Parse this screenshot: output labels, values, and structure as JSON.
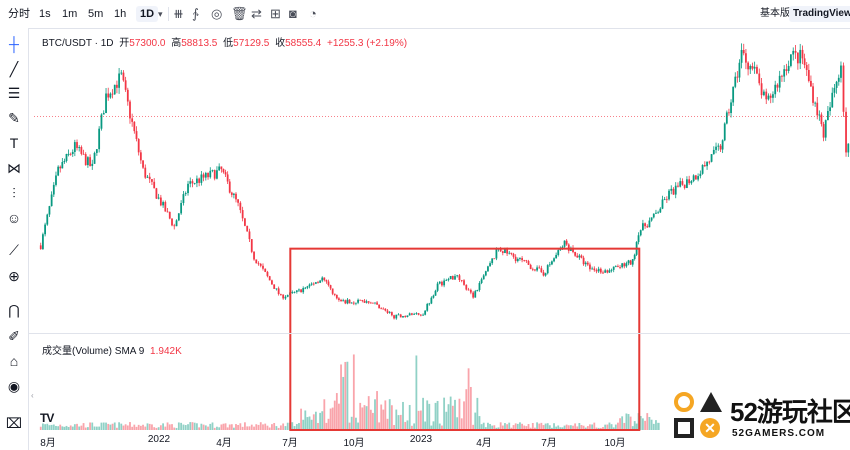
{
  "toolbar": {
    "items": [
      "分时",
      "1s",
      "1m",
      "5m",
      "1h",
      "1D"
    ],
    "active": "1D",
    "icons": [
      "candles-icon",
      "indicators-icon",
      "eye-icon",
      "trash-icon",
      "compare-icon",
      "layout-icon",
      "camera-icon",
      "replay-icon"
    ],
    "modes": [
      "基本版",
      "TradingView"
    ],
    "active_mode": "TradingView"
  },
  "left_tools": [
    "crosshair-icon",
    "trend-line-icon",
    "fib-icon",
    "brush-icon",
    "text-icon",
    "pattern-icon",
    "position-icon",
    "emoji-icon",
    "ruler-icon",
    "zoom-in-icon",
    "magnet-icon",
    "lock-drawing-icon",
    "unlock-icon",
    "eye-icon",
    "trash-icon"
  ],
  "legend": {
    "symbol": "BTC/USDT · 1D",
    "open_label": "开",
    "open": "57300.0",
    "high_label": "高",
    "high": "58813.5",
    "low_label": "低",
    "low": "57129.5",
    "close_label": "收",
    "close": "58555.4",
    "change": "+1255.3 (+2.19%)"
  },
  "volume_legend": {
    "name": "成交量(Volume) SMA 9",
    "value": "1.942K"
  },
  "xaxis": [
    "8月",
    "2022",
    "4月",
    "7月",
    "10月",
    "2023",
    "4月",
    "7月",
    "10月"
  ],
  "watermark": {
    "title": "52游玩社区",
    "subtitle": "52GAMERS.COM"
  },
  "tv_logo": "TV",
  "colors": {
    "up": "#089981",
    "down": "#f23645",
    "highlight": "#e53935",
    "priceline": "#f23645"
  },
  "chart_data": {
    "type": "candlestick",
    "symbol": "BTC/USDT",
    "interval": "1D",
    "series": [
      {
        "name": "BTC/USDT",
        "x": [
          "2021-07-22",
          "2021-08-15",
          "2021-09-07",
          "2021-10-01",
          "2021-10-20",
          "2021-11-10",
          "2021-12-10",
          "2022-01-22",
          "2022-02-10",
          "2022-03-28",
          "2022-04-20",
          "2022-05-12",
          "2022-06-18",
          "2022-07-10",
          "2022-08-14",
          "2022-09-06",
          "2022-10-20",
          "2022-11-09",
          "2022-11-21",
          "2022-12-31",
          "2023-01-20",
          "2023-02-16",
          "2023-03-10",
          "2023-04-14",
          "2023-06-15",
          "2023-07-14",
          "2023-08-18",
          "2023-09-11",
          "2023-10-16",
          "2023-10-24",
          "2023-11-14",
          "2023-12-05",
          "2024-01-11",
          "2024-02-14",
          "2024-03-14",
          "2024-04-01",
          "2024-04-17",
          "2024-05-21",
          "2024-06-06",
          "2024-07-05",
          "2024-07-29",
          "2024-08-05",
          "2024-08-30"
        ],
        "values": [
          31000,
          47000,
          52000,
          47500,
          63000,
          67000,
          47000,
          35000,
          44000,
          47000,
          39500,
          28500,
          20000,
          21000,
          24000,
          19000,
          19100,
          17000,
          15800,
          16500,
          22500,
          24800,
          20000,
          30400,
          25000,
          31500,
          26000,
          25500,
          27500,
          34000,
          37000,
          42000,
          46000,
          52000,
          72000,
          68000,
          61000,
          71500,
          71000,
          55000,
          70000,
          51000,
          59000
        ]
      }
    ],
    "annotation": {
      "type": "rectangle",
      "from": "2022-07-01",
      "to": "2023-10-25",
      "price_top": 30300,
      "price_bottom": 0
    },
    "last_price": 58555.4,
    "ylim": [
      14000,
      74000
    ],
    "volume_label": "成交量(Volume) SMA 9",
    "volume_last": "1.942K"
  }
}
